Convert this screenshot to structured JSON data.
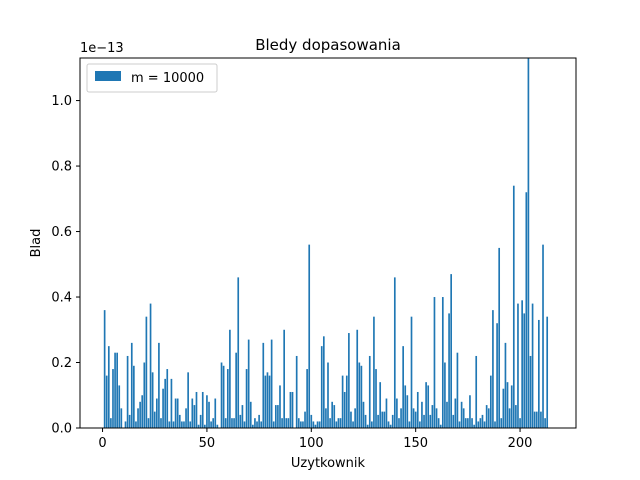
{
  "chart_data": {
    "type": "bar",
    "title": "Bledy dopasowania",
    "xlabel": "Uzytkownik",
    "ylabel": "Blad",
    "y_offset_text": "1e−13",
    "y_scale_exponent": -13,
    "xlim": [
      -10.8,
      226.8
    ],
    "ylim": [
      0,
      1.13
    ],
    "x_ticks": [
      0,
      50,
      100,
      150,
      200
    ],
    "x_tick_labels": [
      "0",
      "50",
      "100",
      "150",
      "200"
    ],
    "y_ticks": [
      0.0,
      0.2,
      0.4,
      0.6,
      0.8,
      1.0
    ],
    "y_tick_labels": [
      "0.0",
      "0.2",
      "0.4",
      "0.6",
      "0.8",
      "1.0"
    ],
    "grid": false,
    "legend_position": "upper-left",
    "series": [
      {
        "name": "m = 10000",
        "color": "#1f77b4",
        "values": [
          0.0,
          0.36,
          0.16,
          0.25,
          0.03,
          0.18,
          0.23,
          0.23,
          0.13,
          0.06,
          0.0,
          0.02,
          0.22,
          0.04,
          0.26,
          0.19,
          0.02,
          0.06,
          0.08,
          0.1,
          0.2,
          0.34,
          0.03,
          0.38,
          0.17,
          0.05,
          0.09,
          0.26,
          0.03,
          0.12,
          0.15,
          0.18,
          0.02,
          0.15,
          0.02,
          0.09,
          0.09,
          0.04,
          0.02,
          0.02,
          0.06,
          0.17,
          0.02,
          0.09,
          0.07,
          0.11,
          0.01,
          0.04,
          0.11,
          0.01,
          0.1,
          0.08,
          0.02,
          0.03,
          0.09,
          0.01,
          0.0,
          0.2,
          0.19,
          0.03,
          0.18,
          0.3,
          0.03,
          0.03,
          0.23,
          0.46,
          0.04,
          0.07,
          0.02,
          0.18,
          0.27,
          0.08,
          0.01,
          0.03,
          0.02,
          0.04,
          0.02,
          0.26,
          0.16,
          0.17,
          0.16,
          0.27,
          0.02,
          0.07,
          0.07,
          0.13,
          0.03,
          0.3,
          0.03,
          0.03,
          0.11,
          0.11,
          0.0,
          0.22,
          0.03,
          0.02,
          0.02,
          0.05,
          0.18,
          0.56,
          0.04,
          0.02,
          0.01,
          0.02,
          0.02,
          0.25,
          0.28,
          0.06,
          0.2,
          0.03,
          0.08,
          0.07,
          0.02,
          0.03,
          0.03,
          0.16,
          0.11,
          0.16,
          0.29,
          0.05,
          0.02,
          0.06,
          0.3,
          0.2,
          0.19,
          0.08,
          0.04,
          0.01,
          0.22,
          0.02,
          0.34,
          0.18,
          0.04,
          0.14,
          0.05,
          0.05,
          0.09,
          0.02,
          0.01,
          0.04,
          0.46,
          0.09,
          0.03,
          0.06,
          0.25,
          0.13,
          0.1,
          0.02,
          0.34,
          0.06,
          0.05,
          0.11,
          0.02,
          0.08,
          0.04,
          0.14,
          0.13,
          0.04,
          0.07,
          0.4,
          0.06,
          0.03,
          0.01,
          0.4,
          0.2,
          0.08,
          0.35,
          0.47,
          0.04,
          0.09,
          0.23,
          0.02,
          0.08,
          0.06,
          0.03,
          0.03,
          0.1,
          0.03,
          0.01,
          0.22,
          0.02,
          0.03,
          0.04,
          0.02,
          0.07,
          0.06,
          0.16,
          0.36,
          0.02,
          0.32,
          0.55,
          0.03,
          0.12,
          0.26,
          0.14,
          0.06,
          0.13,
          0.74,
          0.07,
          0.38,
          0.03,
          0.39,
          0.35,
          0.72,
          1.13,
          0.22,
          0.38,
          0.05,
          0.05,
          0.33,
          0.05,
          0.56,
          0.03,
          0.34
        ]
      }
    ]
  }
}
